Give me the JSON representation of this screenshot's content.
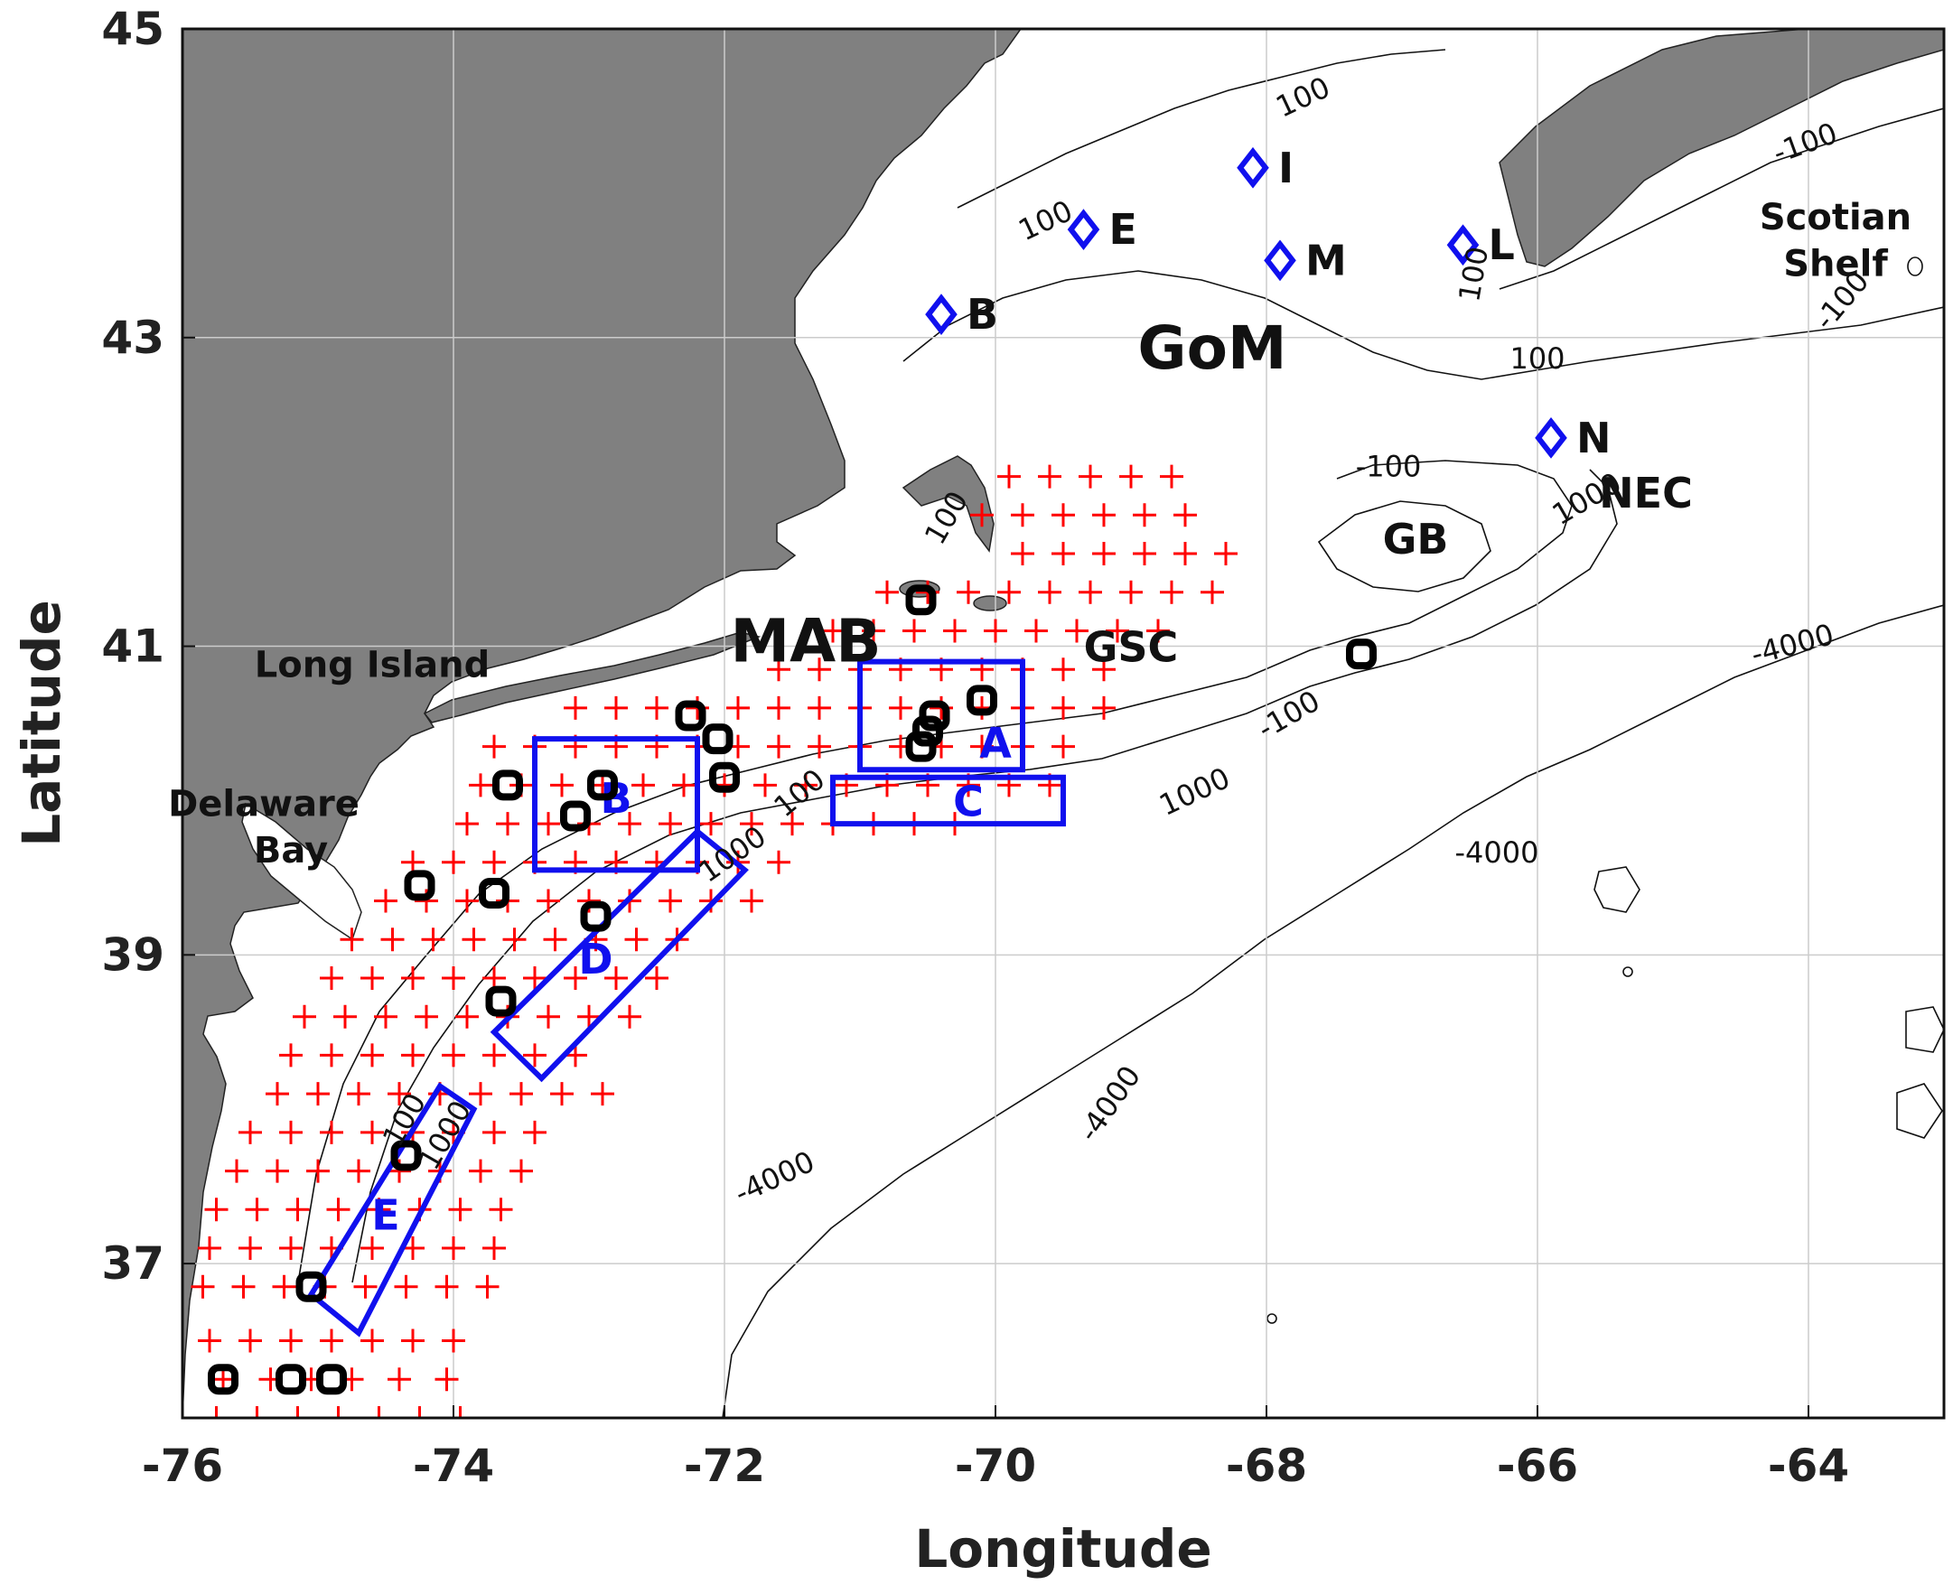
{
  "axes": {
    "xlabel": "Longitude",
    "ylabel": "Latitude",
    "xlim": [
      -76,
      -63
    ],
    "ylim": [
      36,
      45
    ],
    "xticks": [
      "-76",
      "-74",
      "-72",
      "-70",
      "-68",
      "-66",
      "-64"
    ],
    "yticks": [
      "37",
      "39",
      "41",
      "43",
      "45"
    ],
    "grid": true
  },
  "colors": {
    "land": "#808080",
    "ocean": "#ffffff",
    "grid_points": "#ff0000",
    "boxes": "#1010ee",
    "buoys": "#000000",
    "stations": "#1010ee"
  },
  "region_labels": [
    {
      "text": "GoM",
      "lon": -68.4,
      "lat": 42.8
    },
    {
      "text": "MAB",
      "lon": -71.4,
      "lat": 40.9
    },
    {
      "text": "GB",
      "lon": -66.9,
      "lat": 41.6
    },
    {
      "text": "GSC",
      "lon": -69.0,
      "lat": 40.9
    },
    {
      "text": "NEC",
      "lon": -65.2,
      "lat": 41.9
    },
    {
      "text": "Long Island",
      "lon": -74.6,
      "lat": 40.8
    },
    {
      "text": "Delaware",
      "lon": -75.4,
      "lat": 39.9
    },
    {
      "text": "Bay",
      "lon": -75.2,
      "lat": 39.6
    },
    {
      "text": "Scotian",
      "lon": -63.8,
      "lat": 43.7
    },
    {
      "text": "Shelf",
      "lon": -63.8,
      "lat": 43.4
    }
  ],
  "stations": [
    {
      "label": "B",
      "lon": -70.4,
      "lat": 43.15
    },
    {
      "label": "E",
      "lon": -69.35,
      "lat": 43.7
    },
    {
      "label": "I",
      "lon": -68.1,
      "lat": 44.1
    },
    {
      "label": "M",
      "lon": -67.9,
      "lat": 43.5
    },
    {
      "label": "L",
      "lon": -66.55,
      "lat": 43.6
    },
    {
      "label": "N",
      "lon": -65.9,
      "lat": 42.35
    }
  ],
  "boxes": [
    {
      "label": "A",
      "corners": [
        [
          -71.0,
          40.2
        ],
        [
          -69.8,
          40.2
        ],
        [
          -69.8,
          40.9
        ],
        [
          -71.0,
          40.9
        ]
      ],
      "label_lon": -70.0,
      "label_lat": 40.28
    },
    {
      "label": "B",
      "corners": [
        [
          -73.4,
          39.55
        ],
        [
          -72.2,
          39.55
        ],
        [
          -72.2,
          40.4
        ],
        [
          -73.4,
          40.4
        ]
      ],
      "label_lon": -72.8,
      "label_lat": 39.92
    },
    {
      "label": "C",
      "corners": [
        [
          -71.2,
          39.85
        ],
        [
          -69.5,
          39.85
        ],
        [
          -69.5,
          40.15
        ],
        [
          -71.2,
          40.15
        ]
      ],
      "label_lon": -70.2,
      "label_lat": 39.9
    },
    {
      "label": "D",
      "corners": [
        [
          -73.7,
          38.5
        ],
        [
          -72.2,
          39.8
        ],
        [
          -71.85,
          39.55
        ],
        [
          -73.35,
          38.2
        ]
      ],
      "label_lon": -72.95,
      "label_lat": 38.88
    },
    {
      "label": "E",
      "corners": [
        [
          -75.05,
          36.8
        ],
        [
          -74.1,
          38.15
        ],
        [
          -73.85,
          38.0
        ],
        [
          -74.7,
          36.55
        ]
      ],
      "label_lon": -74.5,
      "label_lat": 37.22
    }
  ],
  "buoys": [
    {
      "lon": -75.7,
      "lat": 36.25
    },
    {
      "lon": -75.2,
      "lat": 36.25
    },
    {
      "lon": -74.9,
      "lat": 36.25
    },
    {
      "lon": -75.05,
      "lat": 36.85
    },
    {
      "lon": -74.35,
      "lat": 37.7
    },
    {
      "lon": -73.65,
      "lat": 38.7
    },
    {
      "lon": -73.7,
      "lat": 39.4
    },
    {
      "lon": -74.25,
      "lat": 39.45
    },
    {
      "lon": -72.95,
      "lat": 39.25
    },
    {
      "lon": -73.6,
      "lat": 40.1
    },
    {
      "lon": -73.1,
      "lat": 39.9
    },
    {
      "lon": -72.9,
      "lat": 40.1
    },
    {
      "lon": -72.25,
      "lat": 40.55
    },
    {
      "lon": -72.05,
      "lat": 40.4
    },
    {
      "lon": -72.0,
      "lat": 40.15
    },
    {
      "lon": -70.55,
      "lat": 41.3
    },
    {
      "lon": -70.1,
      "lat": 40.65
    },
    {
      "lon": -70.45,
      "lat": 40.55
    },
    {
      "lon": -70.5,
      "lat": 40.45
    },
    {
      "lon": -70.55,
      "lat": 40.35
    },
    {
      "lon": -67.3,
      "lat": 40.95
    }
  ],
  "contour_labels": [
    {
      "text": "100",
      "lon": -67.7,
      "lat": 44.5,
      "angle": -25
    },
    {
      "text": "100",
      "lon": -69.6,
      "lat": 43.7,
      "angle": -25
    },
    {
      "text": "-100",
      "lon": -64.0,
      "lat": 44.2,
      "angle": -20
    },
    {
      "text": "100",
      "lon": -66.4,
      "lat": 43.4,
      "angle": -80
    },
    {
      "text": "-100",
      "lon": -63.7,
      "lat": 43.2,
      "angle": -50
    },
    {
      "text": "100",
      "lon": -66.0,
      "lat": 42.8,
      "angle": 0
    },
    {
      "text": "-100",
      "lon": -67.1,
      "lat": 42.1,
      "angle": 0
    },
    {
      "text": "1000",
      "lon": -65.6,
      "lat": 41.9,
      "angle": -30
    },
    {
      "text": "100",
      "lon": -70.3,
      "lat": 41.8,
      "angle": -60
    },
    {
      "text": "-100",
      "lon": -67.8,
      "lat": 40.5,
      "angle": -30
    },
    {
      "text": "1000",
      "lon": -68.5,
      "lat": 40.0,
      "angle": -25
    },
    {
      "text": "-4000",
      "lon": -64.1,
      "lat": 40.95,
      "angle": -15
    },
    {
      "text": "-4000",
      "lon": -66.3,
      "lat": 39.6,
      "angle": 0
    },
    {
      "text": "-4000",
      "lon": -69.1,
      "lat": 38.0,
      "angle": -55
    },
    {
      "text": "-4000",
      "lon": -71.6,
      "lat": 37.5,
      "angle": -25
    },
    {
      "text": "100",
      "lon": -71.4,
      "lat": 40.0,
      "angle": -40
    },
    {
      "text": "1000",
      "lon": -71.9,
      "lat": 39.6,
      "angle": -35
    },
    {
      "text": "100",
      "lon": -74.3,
      "lat": 37.9,
      "angle": -60
    },
    {
      "text": "1000",
      "lon": -74.0,
      "lat": 37.8,
      "angle": -60
    }
  ],
  "grid_points": [
    [
      -75.75,
      36.0
    ],
    [
      -75.45,
      36.0
    ],
    [
      -75.15,
      36.0
    ],
    [
      -74.85,
      36.0
    ],
    [
      -74.55,
      36.0
    ],
    [
      -74.25,
      36.0
    ],
    [
      -73.95,
      36.0
    ],
    [
      -75.7,
      36.25
    ],
    [
      -75.35,
      36.25
    ],
    [
      -75.05,
      36.25
    ],
    [
      -74.75,
      36.25
    ],
    [
      -74.4,
      36.25
    ],
    [
      -74.05,
      36.25
    ],
    [
      -75.8,
      36.5
    ],
    [
      -75.5,
      36.5
    ],
    [
      -75.2,
      36.5
    ],
    [
      -74.9,
      36.5
    ],
    [
      -74.6,
      36.5
    ],
    [
      -74.3,
      36.5
    ],
    [
      -74.0,
      36.5
    ],
    [
      -75.85,
      36.85
    ],
    [
      -75.55,
      36.85
    ],
    [
      -75.25,
      36.85
    ],
    [
      -74.95,
      36.85
    ],
    [
      -74.65,
      36.85
    ],
    [
      -74.35,
      36.85
    ],
    [
      -74.05,
      36.85
    ],
    [
      -73.75,
      36.85
    ],
    [
      -75.8,
      37.1
    ],
    [
      -75.5,
      37.1
    ],
    [
      -75.2,
      37.1
    ],
    [
      -74.9,
      37.1
    ],
    [
      -74.6,
      37.1
    ],
    [
      -74.3,
      37.1
    ],
    [
      -74.0,
      37.1
    ],
    [
      -73.7,
      37.1
    ],
    [
      -75.75,
      37.35
    ],
    [
      -75.45,
      37.35
    ],
    [
      -75.15,
      37.35
    ],
    [
      -74.85,
      37.35
    ],
    [
      -74.55,
      37.35
    ],
    [
      -74.25,
      37.35
    ],
    [
      -73.95,
      37.35
    ],
    [
      -73.65,
      37.35
    ],
    [
      -75.6,
      37.6
    ],
    [
      -75.3,
      37.6
    ],
    [
      -75.0,
      37.6
    ],
    [
      -74.7,
      37.6
    ],
    [
      -74.4,
      37.6
    ],
    [
      -74.1,
      37.6
    ],
    [
      -73.8,
      37.6
    ],
    [
      -73.5,
      37.6
    ],
    [
      -75.5,
      37.85
    ],
    [
      -75.2,
      37.85
    ],
    [
      -74.9,
      37.85
    ],
    [
      -74.6,
      37.85
    ],
    [
      -74.3,
      37.85
    ],
    [
      -74.0,
      37.85
    ],
    [
      -73.7,
      37.85
    ],
    [
      -73.4,
      37.85
    ],
    [
      -75.3,
      38.1
    ],
    [
      -75.0,
      38.1
    ],
    [
      -74.7,
      38.1
    ],
    [
      -74.4,
      38.1
    ],
    [
      -74.1,
      38.1
    ],
    [
      -73.8,
      38.1
    ],
    [
      -73.5,
      38.1
    ],
    [
      -73.2,
      38.1
    ],
    [
      -72.9,
      38.1
    ],
    [
      -75.2,
      38.35
    ],
    [
      -74.9,
      38.35
    ],
    [
      -74.6,
      38.35
    ],
    [
      -74.3,
      38.35
    ],
    [
      -74.0,
      38.35
    ],
    [
      -73.7,
      38.35
    ],
    [
      -73.4,
      38.35
    ],
    [
      -73.1,
      38.35
    ],
    [
      -75.1,
      38.6
    ],
    [
      -74.8,
      38.6
    ],
    [
      -74.5,
      38.6
    ],
    [
      -74.2,
      38.6
    ],
    [
      -73.9,
      38.6
    ],
    [
      -73.6,
      38.6
    ],
    [
      -73.3,
      38.6
    ],
    [
      -73.0,
      38.6
    ],
    [
      -72.7,
      38.6
    ],
    [
      -74.9,
      38.85
    ],
    [
      -74.6,
      38.85
    ],
    [
      -74.3,
      38.85
    ],
    [
      -74.0,
      38.85
    ],
    [
      -73.7,
      38.85
    ],
    [
      -73.4,
      38.85
    ],
    [
      -73.1,
      38.85
    ],
    [
      -72.8,
      38.85
    ],
    [
      -72.5,
      38.85
    ],
    [
      -74.75,
      39.1
    ],
    [
      -74.45,
      39.1
    ],
    [
      -74.15,
      39.1
    ],
    [
      -73.85,
      39.1
    ],
    [
      -73.55,
      39.1
    ],
    [
      -73.25,
      39.1
    ],
    [
      -72.95,
      39.1
    ],
    [
      -72.65,
      39.1
    ],
    [
      -72.35,
      39.1
    ],
    [
      -74.5,
      39.35
    ],
    [
      -74.2,
      39.35
    ],
    [
      -73.9,
      39.35
    ],
    [
      -73.6,
      39.35
    ],
    [
      -73.3,
      39.35
    ],
    [
      -73.0,
      39.35
    ],
    [
      -72.7,
      39.35
    ],
    [
      -72.4,
      39.35
    ],
    [
      -72.1,
      39.35
    ],
    [
      -71.8,
      39.35
    ],
    [
      -74.3,
      39.6
    ],
    [
      -74.0,
      39.6
    ],
    [
      -73.7,
      39.6
    ],
    [
      -73.4,
      39.6
    ],
    [
      -73.1,
      39.6
    ],
    [
      -72.8,
      39.6
    ],
    [
      -72.5,
      39.6
    ],
    [
      -72.2,
      39.6
    ],
    [
      -71.9,
      39.6
    ],
    [
      -71.6,
      39.6
    ],
    [
      -73.9,
      39.85
    ],
    [
      -73.6,
      39.85
    ],
    [
      -73.3,
      39.85
    ],
    [
      -73.0,
      39.85
    ],
    [
      -72.7,
      39.85
    ],
    [
      -72.4,
      39.85
    ],
    [
      -72.1,
      39.85
    ],
    [
      -71.8,
      39.85
    ],
    [
      -71.5,
      39.85
    ],
    [
      -71.2,
      39.85
    ],
    [
      -70.9,
      39.85
    ],
    [
      -70.6,
      39.85
    ],
    [
      -70.3,
      39.85
    ],
    [
      -73.8,
      40.1
    ],
    [
      -73.5,
      40.1
    ],
    [
      -73.2,
      40.1
    ],
    [
      -72.9,
      40.1
    ],
    [
      -72.6,
      40.1
    ],
    [
      -72.3,
      40.1
    ],
    [
      -72.0,
      40.1
    ],
    [
      -71.7,
      40.1
    ],
    [
      -71.4,
      40.1
    ],
    [
      -71.1,
      40.1
    ],
    [
      -70.8,
      40.1
    ],
    [
      -70.5,
      40.1
    ],
    [
      -70.2,
      40.1
    ],
    [
      -69.9,
      40.1
    ],
    [
      -69.6,
      40.1
    ],
    [
      -73.7,
      40.35
    ],
    [
      -73.4,
      40.35
    ],
    [
      -73.1,
      40.35
    ],
    [
      -72.8,
      40.35
    ],
    [
      -72.5,
      40.35
    ],
    [
      -72.2,
      40.35
    ],
    [
      -71.9,
      40.35
    ],
    [
      -71.6,
      40.35
    ],
    [
      -71.3,
      40.35
    ],
    [
      -71.0,
      40.35
    ],
    [
      -70.7,
      40.35
    ],
    [
      -70.4,
      40.35
    ],
    [
      -70.1,
      40.35
    ],
    [
      -69.8,
      40.35
    ],
    [
      -69.5,
      40.35
    ],
    [
      -73.1,
      40.6
    ],
    [
      -72.8,
      40.6
    ],
    [
      -72.5,
      40.6
    ],
    [
      -72.2,
      40.6
    ],
    [
      -71.9,
      40.6
    ],
    [
      -71.6,
      40.6
    ],
    [
      -71.3,
      40.6
    ],
    [
      -71.0,
      40.6
    ],
    [
      -70.7,
      40.6
    ],
    [
      -70.4,
      40.6
    ],
    [
      -70.1,
      40.6
    ],
    [
      -69.8,
      40.6
    ],
    [
      -69.5,
      40.6
    ],
    [
      -69.2,
      40.6
    ],
    [
      -71.6,
      40.85
    ],
    [
      -71.3,
      40.85
    ],
    [
      -71.0,
      40.85
    ],
    [
      -70.7,
      40.85
    ],
    [
      -70.4,
      40.85
    ],
    [
      -70.1,
      40.85
    ],
    [
      -69.8,
      40.85
    ],
    [
      -69.5,
      40.85
    ],
    [
      -69.2,
      40.85
    ],
    [
      -71.2,
      41.1
    ],
    [
      -70.9,
      41.1
    ],
    [
      -70.6,
      41.1
    ],
    [
      -70.3,
      41.1
    ],
    [
      -70.0,
      41.1
    ],
    [
      -69.7,
      41.1
    ],
    [
      -69.4,
      41.1
    ],
    [
      -69.1,
      41.1
    ],
    [
      -68.8,
      41.1
    ],
    [
      -70.8,
      41.35
    ],
    [
      -70.5,
      41.35
    ],
    [
      -70.2,
      41.35
    ],
    [
      -69.9,
      41.35
    ],
    [
      -69.6,
      41.35
    ],
    [
      -69.3,
      41.35
    ],
    [
      -69.0,
      41.35
    ],
    [
      -68.7,
      41.35
    ],
    [
      -68.4,
      41.35
    ],
    [
      -69.8,
      41.6
    ],
    [
      -69.5,
      41.6
    ],
    [
      -69.2,
      41.6
    ],
    [
      -68.9,
      41.6
    ],
    [
      -68.6,
      41.6
    ],
    [
      -68.3,
      41.6
    ],
    [
      -70.1,
      41.85
    ],
    [
      -69.8,
      41.85
    ],
    [
      -69.5,
      41.85
    ],
    [
      -69.2,
      41.85
    ],
    [
      -68.9,
      41.85
    ],
    [
      -68.6,
      41.85
    ],
    [
      -69.9,
      42.1
    ],
    [
      -69.6,
      42.1
    ],
    [
      -69.3,
      42.1
    ],
    [
      -69.0,
      42.1
    ],
    [
      -68.7,
      42.1
    ]
  ]
}
